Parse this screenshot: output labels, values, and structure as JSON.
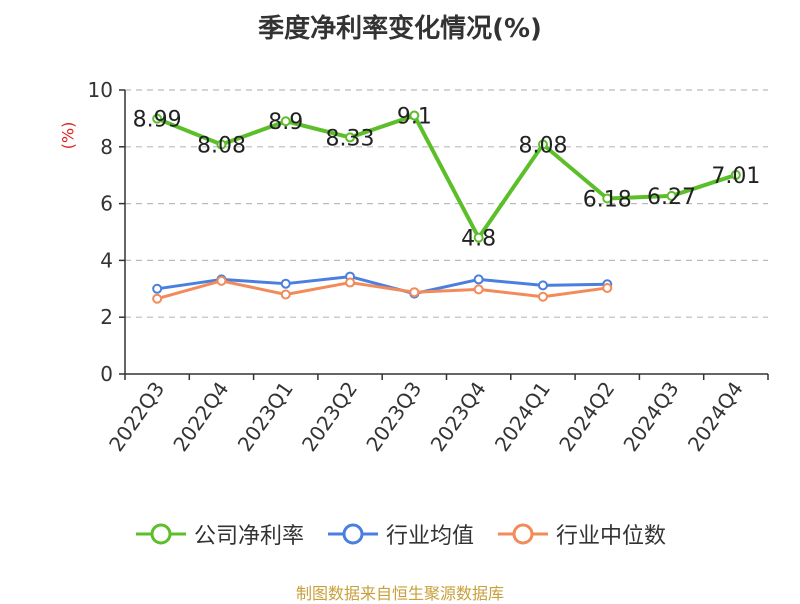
{
  "title": "季度净利率变化情况(%)",
  "y_unit": "(%)",
  "source": "制图数据来自恒生聚源数据库",
  "colors": {
    "company": "#5cbf2a",
    "industry_avg": "#4a7fe0",
    "industry_median": "#f28a5a",
    "axis": "#333333",
    "grid": "#bbbbbb"
  },
  "chart_data": {
    "type": "line",
    "title": "季度净利率变化情况(%)",
    "xlabel": "",
    "ylabel": "(%)",
    "ylim": [
      0,
      10
    ],
    "yticks": [
      0,
      2,
      4,
      6,
      8,
      10
    ],
    "grid": true,
    "legend_position": "bottom",
    "categories": [
      "2022Q3",
      "2022Q4",
      "2023Q1",
      "2023Q2",
      "2023Q3",
      "2023Q4",
      "2024Q1",
      "2024Q2",
      "2024Q3",
      "2024Q4"
    ],
    "series": [
      {
        "name": "公司净利率",
        "color": "#5cbf2a",
        "values": [
          8.99,
          8.08,
          8.9,
          8.33,
          9.1,
          4.8,
          8.08,
          6.18,
          6.27,
          7.01
        ],
        "labels": [
          "8.99",
          "8.08",
          "8.9",
          "8.33",
          "9.1",
          "4.8",
          "8.08",
          "6.18",
          "6.27",
          "7.01"
        ]
      },
      {
        "name": "行业均值",
        "color": "#4a7fe0",
        "values": [
          3.0,
          3.33,
          3.18,
          3.43,
          2.83,
          3.33,
          3.12,
          3.16,
          null,
          null
        ]
      },
      {
        "name": "行业中位数",
        "color": "#f28a5a",
        "values": [
          2.65,
          3.28,
          2.8,
          3.22,
          2.88,
          2.98,
          2.72,
          3.03,
          null,
          null
        ]
      }
    ]
  }
}
